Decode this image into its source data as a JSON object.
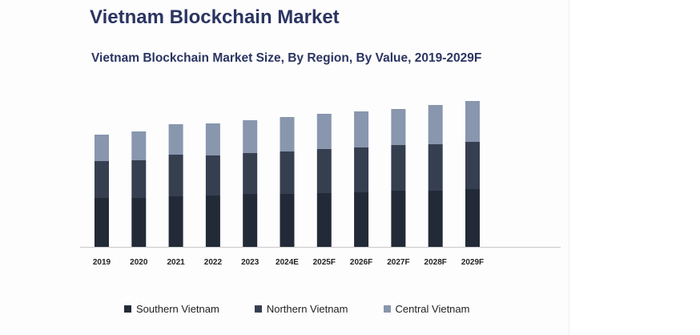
{
  "title": "Vietnam Blockchain Market",
  "chart_data": {
    "type": "bar",
    "stacked": true,
    "title": "Vietnam Blockchain Market Size, By Region, By Value, 2019-2029F",
    "xlabel": "",
    "ylabel": "",
    "y_axis_shown": false,
    "grid": false,
    "legend_placement": "bottom",
    "categories": [
      "2019",
      "2020",
      "2021",
      "2022",
      "2023",
      "2024E",
      "2025F",
      "2026F",
      "2027F",
      "2028F",
      "2029F"
    ],
    "series": [
      {
        "name": "Southern Vietnam",
        "color": "#232a37",
        "values": [
          61,
          61,
          63,
          64,
          66,
          66,
          67,
          68,
          70,
          70,
          72
        ]
      },
      {
        "name": "Northern Vietnam",
        "color": "#363f50",
        "values": [
          46,
          47,
          52,
          50,
          51,
          53,
          55,
          56,
          57,
          58,
          59
        ]
      },
      {
        "name": "Central Vietnam",
        "color": "#8896ae",
        "values": [
          33,
          36,
          38,
          40,
          41,
          43,
          44,
          45,
          45,
          49,
          51
        ]
      }
    ]
  }
}
